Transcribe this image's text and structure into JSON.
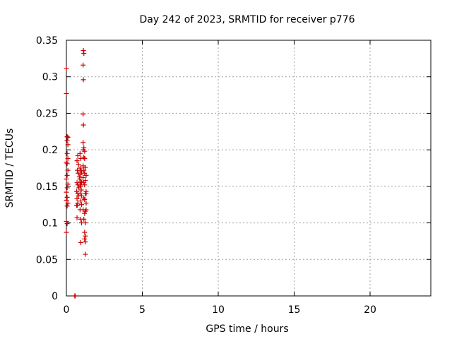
{
  "chart_data": {
    "type": "scatter",
    "title": "Day 242 of 2023, SRMTID for receiver p776",
    "xlabel": "GPS time / hours",
    "ylabel": "SRMTID / TECUs",
    "xlim": [
      0,
      24
    ],
    "ylim": [
      0,
      0.35
    ],
    "x_ticks": [
      "0",
      "5",
      "10",
      "15",
      "20"
    ],
    "y_ticks": [
      "0",
      "0.05",
      "0.1",
      "0.15",
      "0.2",
      "0.25",
      "0.3",
      "0.35"
    ],
    "grid": true,
    "marker": "plus",
    "series": [
      {
        "color": "#cc0000",
        "points": [
          [
            0.0,
            0.311
          ],
          [
            0.0,
            0.277
          ],
          [
            0.05,
            0.218
          ],
          [
            0.1,
            0.217
          ],
          [
            0.05,
            0.213
          ],
          [
            0.1,
            0.207
          ],
          [
            0.05,
            0.195
          ],
          [
            0.1,
            0.188
          ],
          [
            0.0,
            0.183
          ],
          [
            0.05,
            0.181
          ],
          [
            0.1,
            0.172
          ],
          [
            0.05,
            0.165
          ],
          [
            0.0,
            0.16
          ],
          [
            0.1,
            0.153
          ],
          [
            0.05,
            0.148
          ],
          [
            0.0,
            0.142
          ],
          [
            0.05,
            0.135
          ],
          [
            0.0,
            0.131
          ],
          [
            0.1,
            0.127
          ],
          [
            0.05,
            0.123
          ],
          [
            0.0,
            0.102
          ],
          [
            0.05,
            0.099
          ],
          [
            0.0,
            0.087
          ],
          [
            0.55,
            0.0
          ],
          [
            0.58,
            0.0
          ],
          [
            0.7,
            0.185
          ],
          [
            0.75,
            0.192
          ],
          [
            0.8,
            0.18
          ],
          [
            0.72,
            0.172
          ],
          [
            0.78,
            0.168
          ],
          [
            0.85,
            0.163
          ],
          [
            0.7,
            0.155
          ],
          [
            0.75,
            0.152
          ],
          [
            0.82,
            0.148
          ],
          [
            0.68,
            0.143
          ],
          [
            0.75,
            0.14
          ],
          [
            0.8,
            0.137
          ],
          [
            0.7,
            0.133
          ],
          [
            0.75,
            0.127
          ],
          [
            0.68,
            0.124
          ],
          [
            0.72,
            0.124
          ],
          [
            0.7,
            0.107
          ],
          [
            0.9,
            0.195
          ],
          [
            0.95,
            0.188
          ],
          [
            0.9,
            0.175
          ],
          [
            0.95,
            0.172
          ],
          [
            1.0,
            0.17
          ],
          [
            0.92,
            0.166
          ],
          [
            0.88,
            0.16
          ],
          [
            0.95,
            0.157
          ],
          [
            1.0,
            0.155
          ],
          [
            0.9,
            0.152
          ],
          [
            0.95,
            0.15
          ],
          [
            0.98,
            0.145
          ],
          [
            0.9,
            0.14
          ],
          [
            1.0,
            0.137
          ],
          [
            0.95,
            0.13
          ],
          [
            1.0,
            0.125
          ],
          [
            0.9,
            0.118
          ],
          [
            0.95,
            0.105
          ],
          [
            1.0,
            0.1
          ],
          [
            0.95,
            0.073
          ],
          [
            1.12,
            0.336
          ],
          [
            1.15,
            0.332
          ],
          [
            1.1,
            0.316
          ],
          [
            1.12,
            0.296
          ],
          [
            1.1,
            0.249
          ],
          [
            1.12,
            0.234
          ],
          [
            1.1,
            0.21
          ],
          [
            1.15,
            0.203
          ],
          [
            1.12,
            0.2
          ],
          [
            1.2,
            0.198
          ],
          [
            1.15,
            0.19
          ],
          [
            1.2,
            0.188
          ],
          [
            1.1,
            0.178
          ],
          [
            1.25,
            0.176
          ],
          [
            1.15,
            0.172
          ],
          [
            1.2,
            0.168
          ],
          [
            1.3,
            0.165
          ],
          [
            1.1,
            0.162
          ],
          [
            1.25,
            0.158
          ],
          [
            1.15,
            0.155
          ],
          [
            1.2,
            0.152
          ],
          [
            1.3,
            0.143
          ],
          [
            1.25,
            0.14
          ],
          [
            1.3,
            0.14
          ],
          [
            1.15,
            0.134
          ],
          [
            1.2,
            0.132
          ],
          [
            1.3,
            0.127
          ],
          [
            1.1,
            0.118
          ],
          [
            1.25,
            0.116
          ],
          [
            1.3,
            0.118
          ],
          [
            1.2,
            0.113
          ],
          [
            1.15,
            0.105
          ],
          [
            1.25,
            0.1
          ],
          [
            1.2,
            0.087
          ],
          [
            1.25,
            0.082
          ],
          [
            1.2,
            0.078
          ],
          [
            1.25,
            0.074
          ],
          [
            1.25,
            0.057
          ]
        ]
      }
    ]
  }
}
